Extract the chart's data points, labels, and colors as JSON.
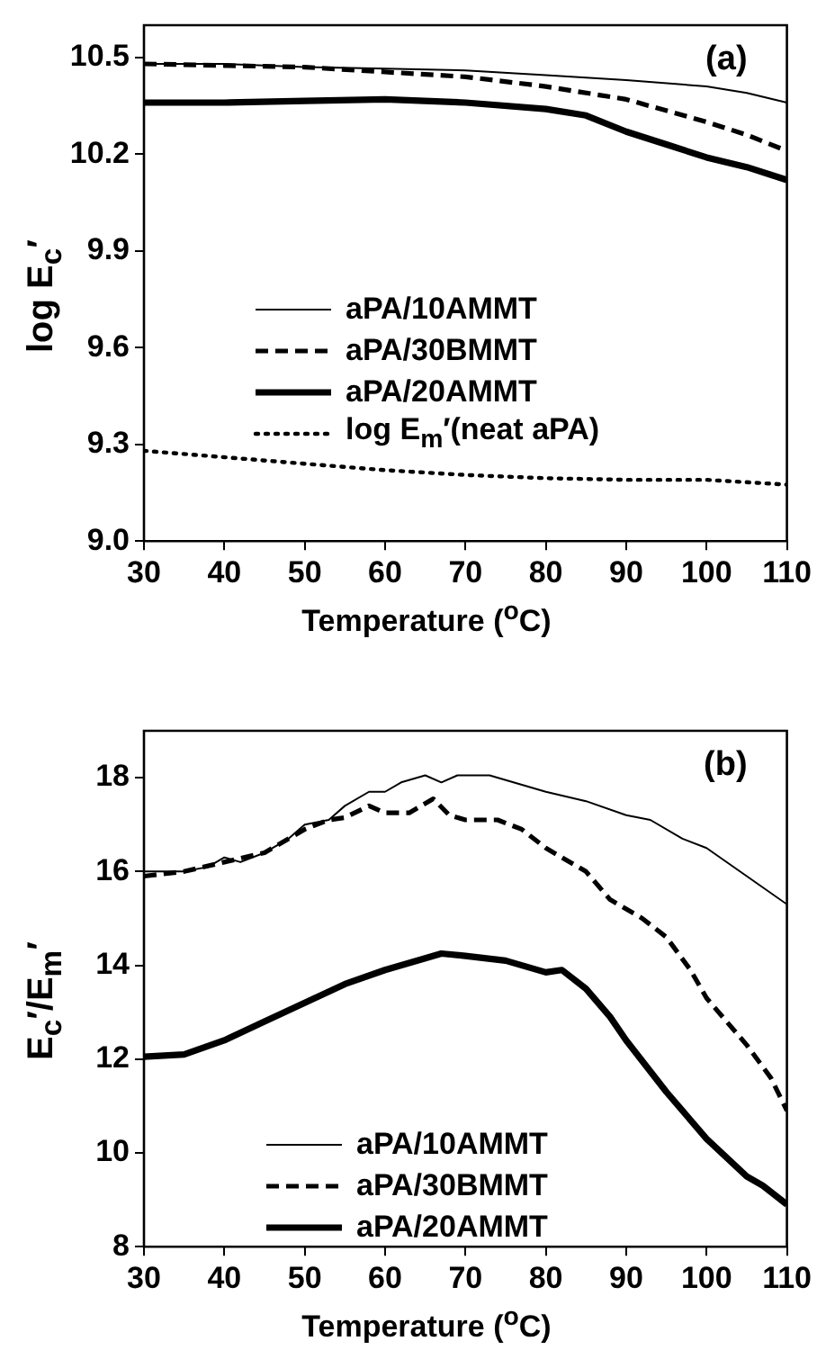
{
  "chart_data": [
    {
      "type": "line",
      "annotations": [
        "(a)"
      ],
      "xlabel": "Temperature ($^{o}$C)",
      "ylabel": "log E$_{c}$′",
      "xlim": [
        30,
        110
      ],
      "xticks": [
        30,
        40,
        50,
        60,
        70,
        80,
        90,
        100,
        110
      ],
      "ylim": [
        9,
        10.6
      ],
      "yticks": [
        {
          "value": 9,
          "label": "9.0"
        },
        9.3,
        9.6,
        9.9,
        10.2,
        10.5
      ],
      "legend": "center",
      "marker": "none",
      "series": [
        {
          "name": "aPA/10AMMT",
          "color": "#000000",
          "line_style": "solid",
          "x": [
            30,
            40,
            50,
            60,
            70,
            80,
            90,
            100,
            105,
            110
          ],
          "values": [
            10.48,
            10.48,
            10.47,
            10.465,
            10.46,
            10.445,
            10.43,
            10.41,
            10.39,
            10.36
          ]
        },
        {
          "name": "aPA/30BMMT",
          "color": "#000000",
          "line_style": "dashed",
          "x": [
            30,
            40,
            50,
            60,
            70,
            80,
            90,
            100,
            105,
            110
          ],
          "values": [
            10.48,
            10.475,
            10.47,
            10.455,
            10.44,
            10.41,
            10.37,
            10.3,
            10.26,
            10.21
          ]
        },
        {
          "name": "aPA/20AMMT",
          "color": "#000000",
          "line_style": "solid",
          "x": [
            30,
            40,
            50,
            60,
            70,
            80,
            85,
            90,
            95,
            100,
            105,
            110
          ],
          "values": [
            10.36,
            10.36,
            10.365,
            10.37,
            10.36,
            10.34,
            10.32,
            10.27,
            10.23,
            10.19,
            10.16,
            10.12
          ]
        },
        {
          "name": "log E$_{m}$′(neat aPA)",
          "color": "#000000",
          "line_style": "dotted",
          "x": [
            30,
            40,
            50,
            60,
            70,
            80,
            90,
            100,
            110
          ],
          "values": [
            9.28,
            9.26,
            9.24,
            9.22,
            9.205,
            9.195,
            9.19,
            9.19,
            9.175
          ]
        }
      ]
    },
    {
      "type": "line",
      "annotations": [
        "(b)"
      ],
      "xlabel": "Temperature ($^{o}$C)",
      "ylabel": "E$_{c}$′/E$_{m}$′",
      "xlim": [
        30,
        110
      ],
      "xticks": [
        30,
        40,
        50,
        60,
        70,
        80,
        90,
        100,
        110
      ],
      "ylim": [
        8,
        19
      ],
      "yticks": [
        8,
        10,
        12,
        14,
        16,
        18
      ],
      "legend": "bottom",
      "marker": "none",
      "series": [
        {
          "name": "aPA/10AMMT",
          "color": "#000000",
          "line_style": "solid",
          "x": [
            30,
            35,
            38,
            40,
            42,
            45,
            48,
            50,
            53,
            55,
            58,
            60,
            62,
            65,
            67,
            69,
            73,
            80,
            85,
            90,
            93,
            97,
            100,
            105,
            110
          ],
          "values": [
            16,
            16,
            16.1,
            16.3,
            16.2,
            16.4,
            16.7,
            17,
            17.1,
            17.4,
            17.7,
            17.7,
            17.9,
            18.05,
            17.9,
            18.05,
            18.05,
            17.7,
            17.5,
            17.2,
            17.1,
            16.7,
            16.5,
            15.9,
            15.3
          ]
        },
        {
          "name": "aPA/30BMMT",
          "color": "#000000",
          "line_style": "dashed",
          "x": [
            30,
            35,
            40,
            45,
            50,
            53,
            55,
            58,
            60,
            63,
            66,
            68,
            70,
            74,
            77,
            80,
            85,
            88,
            92,
            95,
            98,
            100,
            105,
            108,
            110
          ],
          "values": [
            15.9,
            16,
            16.2,
            16.4,
            16.9,
            17.1,
            17.15,
            17.4,
            17.25,
            17.25,
            17.55,
            17.2,
            17.1,
            17.1,
            16.9,
            16.5,
            16,
            15.4,
            15,
            14.6,
            13.9,
            13.3,
            12.3,
            11.6,
            10.9
          ]
        },
        {
          "name": "aPA/20AMMT",
          "color": "#000000",
          "line_style": "solid",
          "x": [
            30,
            35,
            40,
            45,
            50,
            55,
            60,
            65,
            67,
            70,
            75,
            80,
            82,
            85,
            88,
            90,
            95,
            100,
            105,
            107,
            110
          ],
          "values": [
            12.05,
            12.1,
            12.4,
            12.8,
            13.2,
            13.6,
            13.9,
            14.15,
            14.25,
            14.2,
            14.1,
            13.85,
            13.9,
            13.5,
            12.9,
            12.4,
            11.3,
            10.3,
            9.5,
            9.3,
            8.9
          ]
        }
      ]
    }
  ]
}
